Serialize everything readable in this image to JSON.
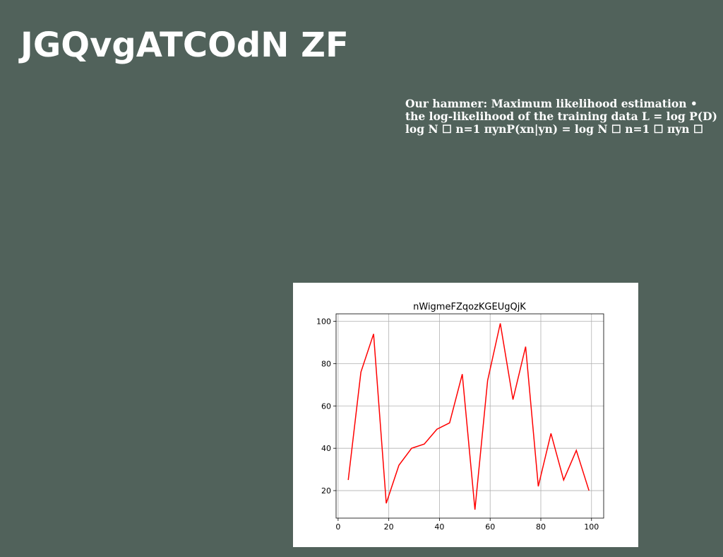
{
  "slide": {
    "title": "JGQvgATCOdN ZF",
    "body_lines": [
      "Our hammer: Maximum likelihood estimation •",
      "the log-likelihood of the training data L = log P(D)",
      "log N ☐ n=1 πynP(xn|yn) = log N ☐ n=1 ☐ πyn ☐"
    ]
  },
  "chart_data": {
    "type": "line",
    "title": "nWigmeFZqozKGEUgQjK",
    "xlabel": "",
    "ylabel": "",
    "x": [
      4,
      9,
      14,
      19,
      24,
      29,
      34,
      39,
      44,
      49,
      54,
      59,
      64,
      69,
      74,
      79,
      84,
      89,
      94,
      99
    ],
    "series": [
      {
        "values": [
          25,
          76,
          94,
          14,
          32,
          40,
          42,
          49,
          52,
          75,
          11,
          72,
          99,
          63,
          88,
          22,
          47,
          25,
          39,
          20
        ],
        "color": "#ff0000"
      }
    ],
    "xlim": [
      -0.8,
      104.8
    ],
    "ylim": [
      7,
      103.5
    ],
    "xticks": [
      0,
      20,
      40,
      60,
      80,
      100
    ],
    "yticks": [
      20,
      40,
      60,
      80,
      100
    ],
    "grid": true,
    "legend": false
  }
}
